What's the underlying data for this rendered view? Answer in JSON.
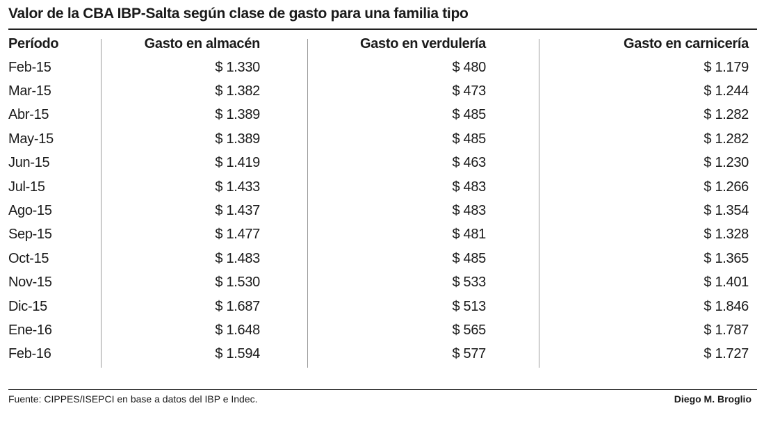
{
  "chart_data": {
    "type": "table",
    "title": "Valor de la CBA IBP-Salta según clase de gasto para una familia tipo",
    "columns": [
      "Período",
      "Gasto en almacén",
      "Gasto en verdulería",
      "Gasto en carnicería"
    ],
    "rows": [
      [
        "Feb-15",
        "$ 1.330",
        "$ 480",
        "$ 1.179"
      ],
      [
        "Mar-15",
        "$ 1.382",
        "$ 473",
        "$ 1.244"
      ],
      [
        "Abr-15",
        "$ 1.389",
        "$ 485",
        "$ 1.282"
      ],
      [
        "May-15",
        "$ 1.389",
        "$ 485",
        "$ 1.282"
      ],
      [
        "Jun-15",
        "$ 1.419",
        "$ 463",
        "$ 1.230"
      ],
      [
        "Jul-15",
        "$ 1.433",
        "$ 483",
        "$ 1.266"
      ],
      [
        "Ago-15",
        "$ 1.437",
        "$ 483",
        "$ 1.354"
      ],
      [
        "Sep-15",
        "$ 1.477",
        "$ 481",
        "$ 1.328"
      ],
      [
        "Oct-15",
        "$ 1.483",
        "$ 485",
        "$ 1.365"
      ],
      [
        "Nov-15",
        "$ 1.530",
        "$ 533",
        "$ 1.401"
      ],
      [
        "Dic-15",
        "$ 1.687",
        "$ 513",
        "$ 1.846"
      ],
      [
        "Ene-16",
        "$ 1.648",
        "$ 565",
        "$ 1.787"
      ],
      [
        "Feb-16",
        "$ 1.594",
        "$ 577",
        "$ 1.727"
      ]
    ]
  },
  "footer": {
    "source": "Fuente: CIPPES/ISEPCI en base a datos del IBP e Indec.",
    "author": "Diego M. Broglio"
  },
  "colors": {
    "text": "#1a1a1a",
    "rule": "#222222",
    "divider": "#9a9a9a"
  }
}
